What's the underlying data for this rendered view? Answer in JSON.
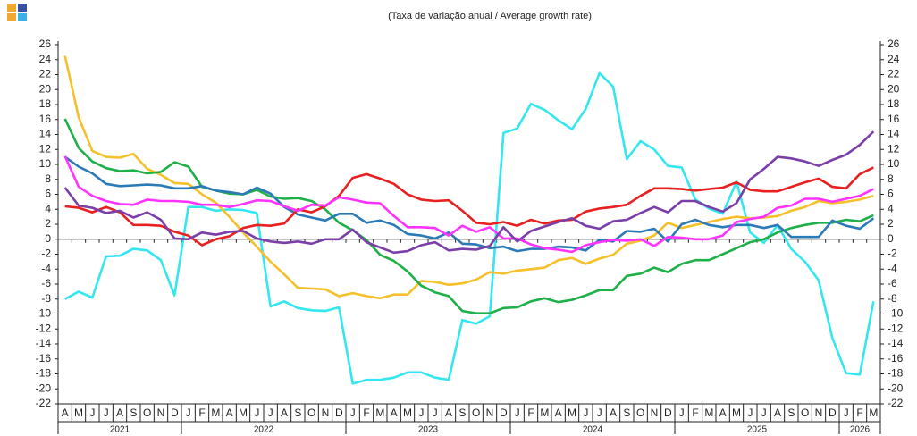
{
  "chart_data": {
    "type": "line",
    "subtitle": "(Taxa de variação anual / Average growth rate)",
    "categories": [
      "A",
      "M",
      "J",
      "J",
      "A",
      "S",
      "O",
      "N",
      "D",
      "J",
      "F",
      "M",
      "A",
      "M",
      "J",
      "J",
      "A",
      "S",
      "O",
      "N",
      "D",
      "J",
      "F",
      "M",
      "A",
      "M",
      "J",
      "J",
      "A",
      "S",
      "O",
      "N",
      "D",
      "J",
      "F",
      "M",
      "A",
      "M",
      "J",
      "J",
      "A",
      "S",
      "O",
      "N",
      "D",
      "J",
      "F",
      "M",
      "A",
      "M",
      "J",
      "J",
      "A",
      "S",
      "O",
      "N",
      "D",
      "J",
      "F",
      "M"
    ],
    "year_labels": [
      "2021",
      "2022",
      "2023",
      "2024",
      "2025",
      "2026"
    ],
    "ylim": [
      -22,
      26
    ],
    "yticks": [
      -22,
      -20,
      -18,
      -16,
      -14,
      -12,
      -10,
      -8,
      -6,
      -4,
      -2,
      0,
      2,
      4,
      6,
      8,
      10,
      12,
      14,
      16,
      18,
      20,
      22,
      24,
      26
    ],
    "grid": false,
    "series": [
      {
        "color": "#33e6f0",
        "values": [
          -8,
          -7,
          -7.8,
          -2.3,
          -2.2,
          -1.3,
          -1.5,
          -2.8,
          -7.5,
          4.3,
          4.3,
          3.8,
          4,
          3.9,
          3.5,
          -9,
          -8.3,
          -9.2,
          -9.5,
          -9.6,
          -9.1,
          -19.3,
          -18.8,
          -18.8,
          -18.5,
          -17.8,
          -17.8,
          -18.5,
          -18.8,
          -10.8,
          -11.3,
          -10.3,
          14.2,
          14.8,
          18.1,
          17.3,
          15.9,
          14.7,
          17.4,
          22.2,
          20.4,
          10.7,
          13.1,
          12,
          9.8,
          9.6,
          5.3,
          4.1,
          3.4,
          7.7,
          0.9,
          -0.5,
          1.9,
          -1.3,
          -3,
          -5.5,
          -13.2,
          -17.9,
          -18.1,
          -8.3
        ]
      },
      {
        "color": "#f5c02a",
        "values": [
          24.5,
          16.3,
          11.8,
          11,
          10.9,
          11.4,
          9.4,
          8.6,
          7.5,
          7.4,
          6,
          4.9,
          3,
          0.9,
          -1,
          -3,
          -4.7,
          -6.5,
          -6.6,
          -6.7,
          -7.6,
          -7.2,
          -7.6,
          -7.9,
          -7.4,
          -7.4,
          -5.6,
          -5.7,
          -6.1,
          -5.9,
          -5.4,
          -4.4,
          -4.6,
          -4.2,
          -4,
          -3.8,
          -2.8,
          -2.5,
          -3.3,
          -2.6,
          -2.1,
          -0.6,
          -0.2,
          0.5,
          2.2,
          1.5,
          1.9,
          2.3,
          2.7,
          3,
          2.8,
          2.9,
          3.1,
          3.8,
          4.3,
          5.1,
          4.8,
          5,
          5.3,
          5.8
        ]
      },
      {
        "color": "#1fb04a",
        "values": [
          16.1,
          12.2,
          10.4,
          9.5,
          9.1,
          9.2,
          8.8,
          9,
          10.3,
          9.7,
          7,
          6.5,
          6.1,
          6,
          6.6,
          5.7,
          5.4,
          5.5,
          5.1,
          4,
          2.2,
          1.2,
          -0.1,
          -2.1,
          -2.9,
          -4.3,
          -6.2,
          -7.1,
          -7.6,
          -9.6,
          -9.9,
          -9.9,
          -9.2,
          -9.1,
          -8.3,
          -7.9,
          -8.4,
          -8.1,
          -7.5,
          -6.8,
          -6.8,
          -4.9,
          -4.6,
          -3.8,
          -4.4,
          -3.3,
          -2.8,
          -2.8,
          -2,
          -1.2,
          -0.4,
          0,
          0.9,
          1.5,
          1.9,
          2.2,
          2.2,
          2.6,
          2.4,
          3.2
        ]
      },
      {
        "color": "#2a7ab8",
        "values": [
          11,
          9.7,
          8.8,
          7.4,
          7.1,
          7.2,
          7.3,
          7.2,
          6.8,
          6.8,
          7.1,
          6.5,
          6.3,
          6,
          6.9,
          6.1,
          4.3,
          3.3,
          2.9,
          2.5,
          3.4,
          3.4,
          2.2,
          2.5,
          1.9,
          0.7,
          0.5,
          0.1,
          0.9,
          -0.6,
          -0.7,
          -1.2,
          -1,
          -1.6,
          -1.3,
          -1.3,
          -1,
          -1.1,
          -1.5,
          -0.1,
          -0.3,
          1.1,
          1,
          1.4,
          -0.3,
          2,
          2.6,
          1.9,
          1.6,
          1.9,
          1.9,
          1.5,
          1.9,
          0.3,
          0.3,
          0.3,
          2.5,
          1.8,
          1.4,
          2.8
        ]
      },
      {
        "color": "#e82020",
        "values": [
          4.4,
          4.2,
          3.6,
          4.3,
          3.6,
          1.9,
          1.9,
          1.8,
          1,
          0.5,
          -0.8,
          0,
          0.4,
          1.5,
          1.9,
          1.8,
          2.1,
          4,
          3.6,
          4.4,
          5.8,
          8.2,
          8.7,
          8.1,
          7.4,
          6,
          5.3,
          5.1,
          5.2,
          3.8,
          2.2,
          2,
          2.3,
          1.8,
          2.6,
          2.1,
          2.5,
          2.6,
          3.7,
          4.1,
          4.3,
          4.6,
          5.8,
          6.8,
          6.8,
          6.7,
          6.5,
          6.7,
          6.9,
          7.6,
          6.6,
          6.4,
          6.4,
          7,
          7.6,
          8.1,
          7,
          6.8,
          8.7,
          9.6
        ]
      },
      {
        "color": "#ff33ff",
        "values": [
          11.1,
          7,
          5.8,
          5.1,
          4.7,
          4.6,
          5.3,
          5.1,
          5.1,
          5,
          4.6,
          4.6,
          4.3,
          4.7,
          5.2,
          5.1,
          4.4,
          3.8,
          4.6,
          4.5,
          5.6,
          5.3,
          4.9,
          4.8,
          3.1,
          1.6,
          1.6,
          1.5,
          0.5,
          1.8,
          1,
          1.6,
          0.1,
          0.1,
          -0.7,
          -1.2,
          -1.4,
          -1.7,
          -0.8,
          -0.4,
          -0.1,
          -0.2,
          0,
          -0.9,
          0.3,
          0.2,
          0,
          0,
          0.5,
          2.3,
          2.7,
          3,
          4.2,
          4.5,
          5.4,
          5.4,
          5,
          5.4,
          5.8,
          6.7
        ]
      },
      {
        "color": "#7a3fa8",
        "values": [
          6.9,
          4.5,
          4.2,
          3.5,
          3.8,
          2.9,
          3.6,
          2.6,
          0.1,
          0,
          0.9,
          0.6,
          1,
          1.1,
          0.1,
          -0.3,
          -0.5,
          -0.3,
          -0.6,
          0,
          0,
          1.3,
          -0.4,
          -1.1,
          -1.8,
          -1.6,
          -0.8,
          -0.4,
          -1.5,
          -1.3,
          -1.4,
          -0.9,
          1.6,
          -0.3,
          1.1,
          1.7,
          2.3,
          2.8,
          1.8,
          1.4,
          2.4,
          2.6,
          3.5,
          4.3,
          3.6,
          5.1,
          5.1,
          4.3,
          3.7,
          4.8,
          8,
          9.4,
          11,
          10.8,
          10.4,
          9.8,
          10.6,
          11.3,
          12.6,
          14.4
        ]
      }
    ]
  }
}
